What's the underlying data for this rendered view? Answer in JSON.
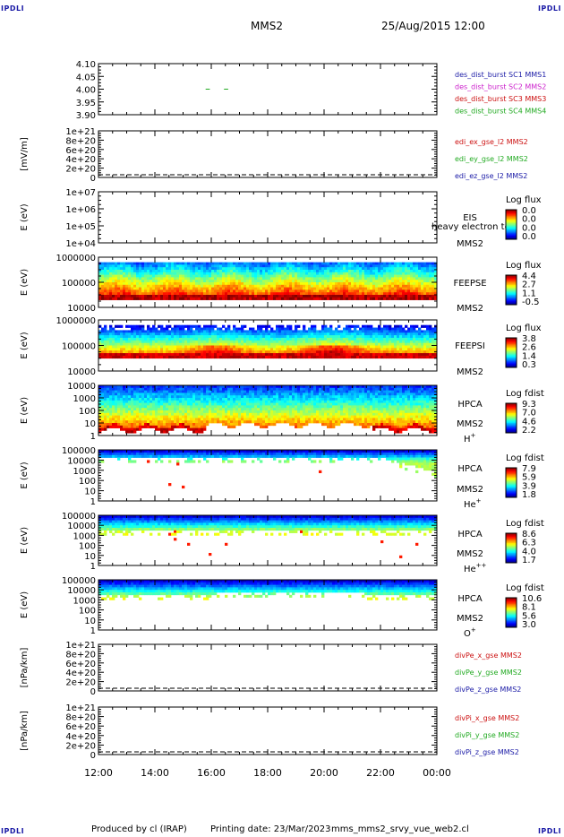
{
  "header": {
    "corner_label": "IPDLI",
    "spacecraft": "MMS2",
    "datetime": "25/Aug/2015 12:00"
  },
  "footer": {
    "produced_by": "Produced by  cl (IRAP)",
    "printing_date": "Printing date: 23/Mar/2023",
    "script_name": "mms_mms2_srvy_vue_web2.cl"
  },
  "time_axis": {
    "labels": [
      "12:00",
      "14:00",
      "16:00",
      "18:00",
      "20:00",
      "22:00",
      "00:00"
    ]
  },
  "colors": {
    "mms1": "#1a1aa6",
    "mms2": "#cc22cc",
    "mms3": "#cc1111",
    "mms4": "#22aa22",
    "x": "#cc1111",
    "y": "#22aa22",
    "z": "#1a1aa6"
  },
  "chart_data": [
    {
      "id": "des-dist-burst",
      "type": "line",
      "ylabel": "",
      "ylim": [
        3.9,
        4.1
      ],
      "yticks": [
        "4.10",
        "4.05",
        "4.00",
        "3.95",
        "3.90"
      ],
      "legend": [
        {
          "text": "des_dist_burst SC1 MMS1",
          "color": "#1a1aa6"
        },
        {
          "text": "des_dist_burst SC2 MMS2",
          "color": "#cc22cc"
        },
        {
          "text": "des_dist_burst SC3 MMS3",
          "color": "#cc1111"
        },
        {
          "text": "des_dist_burst SC4 MMS4",
          "color": "#22aa22"
        }
      ],
      "series": [
        {
          "color": "#22aa22",
          "x": [
            15.8,
            15.95
          ],
          "y": [
            4.0,
            4.0
          ]
        },
        {
          "color": "#22aa22",
          "x": [
            16.45,
            16.6
          ],
          "y": [
            4.0,
            4.0
          ]
        }
      ]
    },
    {
      "id": "edi-e-field",
      "type": "line",
      "ylabel": "[mV/m]",
      "ylim": [
        0,
        1e+21
      ],
      "yticks": [
        "1e+21",
        "8e+20",
        "6e+20",
        "4e+20",
        "2e+20",
        "0"
      ],
      "zero_line": true,
      "legend": [
        {
          "text": "edi_ex_gse_l2 MMS2",
          "color": "#cc1111"
        },
        {
          "text": "edi_ey_gse_l2 MMS2",
          "color": "#22aa22"
        },
        {
          "text": "edi_ez_gse_l2 MMS2",
          "color": "#1a1aa6"
        }
      ]
    },
    {
      "id": "eis",
      "type": "heatmap",
      "ylabel": "E (eV)",
      "yticks": [
        "1e+07",
        "1e+06",
        "1e+05",
        "1e+04"
      ],
      "instrument": [
        "EIS",
        "MMS2"
      ],
      "overlay_text": "heavy electron to",
      "colorbar": {
        "title": "Log flux",
        "ticks": [
          "0.0",
          "0.0",
          "0.0",
          "0.0"
        ]
      }
    },
    {
      "id": "feeps-e",
      "type": "heatmap",
      "ylabel": "E (eV)",
      "yticks": [
        "1000000",
        "100000",
        "10000"
      ],
      "instrument": [
        "FEEPSE",
        "MMS2"
      ],
      "colorbar": {
        "title": "Log flux",
        "ticks": [
          "4.4",
          "2.7",
          "1.1",
          "-0.5"
        ]
      }
    },
    {
      "id": "feeps-i",
      "type": "heatmap",
      "ylabel": "E (eV)",
      "yticks": [
        "1000000",
        "100000",
        "10000"
      ],
      "instrument": [
        "FEEPSI",
        "MMS2"
      ],
      "colorbar": {
        "title": "Log flux",
        "ticks": [
          "3.8",
          "2.6",
          "1.4",
          "0.3"
        ]
      }
    },
    {
      "id": "hpca-h",
      "type": "heatmap",
      "ylabel": "E (eV)",
      "yticks": [
        "10000",
        "1000",
        "100",
        "10",
        "1"
      ],
      "instrument": [
        "HPCA",
        "MMS2"
      ],
      "species": "H",
      "species_charge": "+",
      "colorbar": {
        "title": "Log fdist",
        "ticks": [
          "9.3",
          "7.0",
          "4.6",
          "2.2"
        ]
      }
    },
    {
      "id": "hpca-he",
      "type": "heatmap",
      "ylabel": "E (eV)",
      "yticks": [
        "100000",
        "10000",
        "1000",
        "100",
        "10",
        "1"
      ],
      "instrument": [
        "HPCA",
        "MMS2"
      ],
      "species": "He",
      "species_charge": "+",
      "colorbar": {
        "title": "Log fdist",
        "ticks": [
          "7.9",
          "5.9",
          "3.9",
          "1.8"
        ]
      }
    },
    {
      "id": "hpca-hepp",
      "type": "heatmap",
      "ylabel": "E (eV)",
      "yticks": [
        "100000",
        "10000",
        "1000",
        "100",
        "10",
        "1"
      ],
      "instrument": [
        "HPCA",
        "MMS2"
      ],
      "species": "He",
      "species_charge": "++",
      "colorbar": {
        "title": "Log fdist",
        "ticks": [
          "8.6",
          "6.3",
          "4.0",
          "1.7"
        ]
      }
    },
    {
      "id": "hpca-o",
      "type": "heatmap",
      "ylabel": "E (eV)",
      "yticks": [
        "100000",
        "10000",
        "1000",
        "100",
        "10",
        "1"
      ],
      "instrument": [
        "HPCA",
        "MMS2"
      ],
      "species": "O",
      "species_charge": "+",
      "colorbar": {
        "title": "Log fdist",
        "ticks": [
          "10.6",
          "8.1",
          "5.6",
          "3.0"
        ]
      }
    },
    {
      "id": "divpe",
      "type": "line",
      "ylabel": "[nPa/km]",
      "ylim": [
        0,
        1e+21
      ],
      "yticks": [
        "1e+21",
        "8e+20",
        "6e+20",
        "4e+20",
        "2e+20",
        "0"
      ],
      "zero_line": true,
      "legend": [
        {
          "text": "divPe_x_gse MMS2",
          "color": "#cc1111"
        },
        {
          "text": "divPe_y_gse MMS2",
          "color": "#22aa22"
        },
        {
          "text": "divPe_z_gse MMS2",
          "color": "#1a1aa6"
        }
      ]
    },
    {
      "id": "divpi",
      "type": "line",
      "ylabel": "[nPa/km]",
      "ylim": [
        0,
        1e+21
      ],
      "yticks": [
        "1e+21",
        "8e+20",
        "6e+20",
        "4e+20",
        "2e+20",
        "0"
      ],
      "zero_line": true,
      "legend": [
        {
          "text": "divPi_x_gse MMS2",
          "color": "#cc1111"
        },
        {
          "text": "divPi_y_gse MMS2",
          "color": "#22aa22"
        },
        {
          "text": "divPi_z_gse MMS2",
          "color": "#1a1aa6"
        }
      ]
    }
  ]
}
